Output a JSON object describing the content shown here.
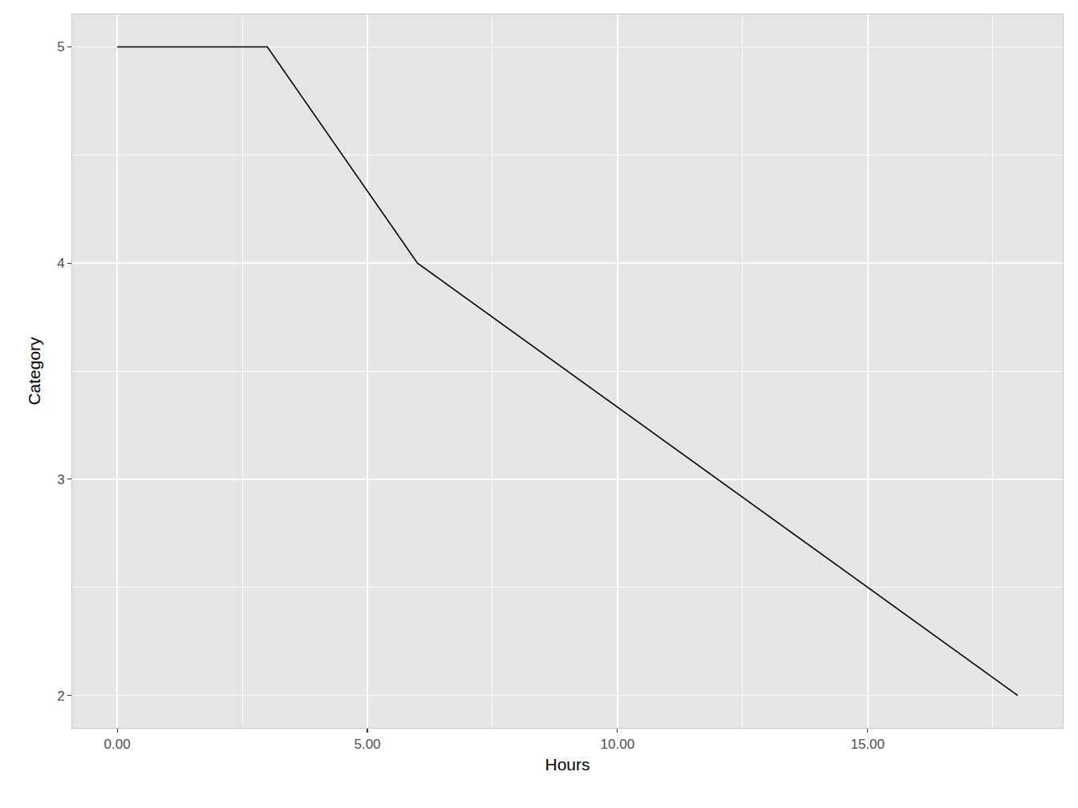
{
  "chart_data": {
    "type": "line",
    "x_label": "Hours",
    "y_label": "Category",
    "x": [
      0,
      3,
      6,
      18
    ],
    "values": [
      5,
      5,
      4,
      2
    ],
    "color": "#000000",
    "xlim": [
      -0.9,
      18.9
    ],
    "xticks": [
      {
        "value": 0,
        "label": "0.00"
      },
      {
        "value": 5,
        "label": "5.00"
      },
      {
        "value": 10,
        "label": "10.00"
      },
      {
        "value": 15,
        "label": "15.00"
      }
    ],
    "ylim": [
      1.85,
      5.15
    ],
    "yticks": [
      2,
      3,
      4,
      5
    ],
    "grid": true
  }
}
